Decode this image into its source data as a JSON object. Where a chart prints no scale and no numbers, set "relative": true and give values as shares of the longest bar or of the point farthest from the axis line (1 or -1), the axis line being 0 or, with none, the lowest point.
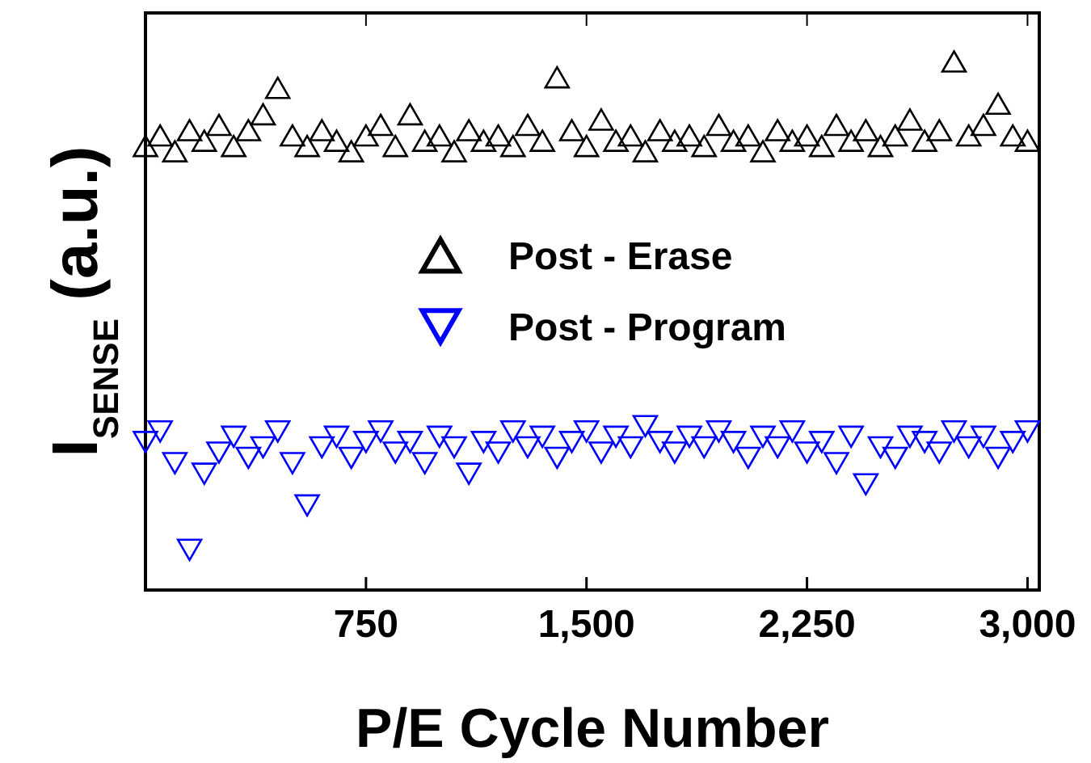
{
  "chart_data": {
    "type": "scatter",
    "relative": true,
    "xlabel": "P/E Cycle Number",
    "ylabel": "I$_{SENSE}$ (a.u.)",
    "xlim": [
      0,
      3040
    ],
    "xticks": [
      750,
      {
        "value": 1500,
        "label": "1,500"
      },
      {
        "value": 2250,
        "label": "2,250"
      },
      {
        "value": 3000,
        "label": "3,000"
      }
    ],
    "legend": "center",
    "x": [
      0,
      50,
      100,
      150,
      200,
      250,
      300,
      350,
      400,
      450,
      500,
      550,
      600,
      650,
      700,
      750,
      800,
      850,
      900,
      950,
      1000,
      1050,
      1100,
      1150,
      1200,
      1250,
      1300,
      1350,
      1400,
      1450,
      1500,
      1550,
      1600,
      1650,
      1700,
      1750,
      1800,
      1850,
      1900,
      1950,
      2000,
      2050,
      2100,
      2150,
      2200,
      2250,
      2300,
      2350,
      2400,
      2450,
      2500,
      2550,
      2600,
      2650,
      2700,
      2750,
      2800,
      2850,
      2900,
      2950,
      3000
    ],
    "series": [
      {
        "name": "Post - Erase",
        "color": "#000000",
        "marker": "triangle",
        "values": [
          0.84,
          0.86,
          0.83,
          0.87,
          0.85,
          0.88,
          0.84,
          0.87,
          0.9,
          0.95,
          0.86,
          0.84,
          0.87,
          0.85,
          0.83,
          0.86,
          0.88,
          0.84,
          0.9,
          0.85,
          0.86,
          0.83,
          0.87,
          0.85,
          0.86,
          0.84,
          0.88,
          0.85,
          0.97,
          0.87,
          0.84,
          0.89,
          0.85,
          0.86,
          0.83,
          0.87,
          0.85,
          0.86,
          0.84,
          0.88,
          0.85,
          0.86,
          0.83,
          0.87,
          0.85,
          0.86,
          0.84,
          0.88,
          0.85,
          0.87,
          0.84,
          0.86,
          0.89,
          0.85,
          0.87,
          1.0,
          0.86,
          0.88,
          0.92,
          0.86,
          0.85
        ]
      },
      {
        "name": "Post - Program",
        "color": "#0000ff",
        "marker": "triangle-down",
        "values": [
          0.28,
          0.3,
          0.24,
          0.076,
          0.22,
          0.26,
          0.29,
          0.25,
          0.27,
          0.3,
          0.24,
          0.16,
          0.27,
          0.29,
          0.25,
          0.28,
          0.3,
          0.26,
          0.28,
          0.24,
          0.29,
          0.27,
          0.22,
          0.28,
          0.26,
          0.3,
          0.27,
          0.29,
          0.25,
          0.28,
          0.3,
          0.26,
          0.29,
          0.27,
          0.31,
          0.28,
          0.26,
          0.29,
          0.27,
          0.3,
          0.28,
          0.25,
          0.29,
          0.27,
          0.3,
          0.26,
          0.28,
          0.24,
          0.29,
          0.2,
          0.27,
          0.25,
          0.29,
          0.28,
          0.26,
          0.3,
          0.27,
          0.29,
          0.25,
          0.28,
          0.3
        ]
      }
    ]
  }
}
